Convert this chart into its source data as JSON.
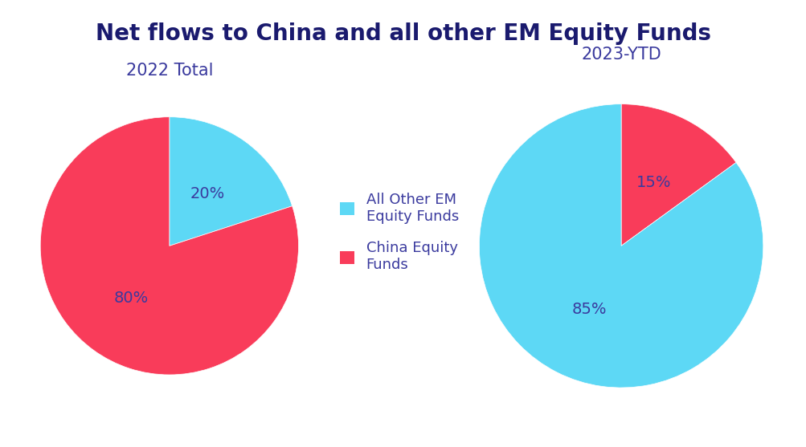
{
  "title": "Net flows to China and all other EM Equity Funds",
  "title_color": "#1a1a6e",
  "title_fontsize": 20,
  "background_color": "#ffffff",
  "pie1_title": "2022 Total",
  "pie2_title": "2023-YTD",
  "subtitle_color": "#3a3a9e",
  "subtitle_fontsize": 15,
  "pie1_values": [
    20,
    80
  ],
  "pie2_values": [
    85,
    15
  ],
  "colors_order1": [
    "#5dd8f5",
    "#f93c5a"
  ],
  "colors_order2": [
    "#5dd8f5",
    "#f93c5a"
  ],
  "legend_labels": [
    "All Other EM\nEquity Funds",
    "China Equity\nFunds"
  ],
  "legend_colors": [
    "#5dd8f5",
    "#f93c5a"
  ],
  "label_color": "#3a3a9e",
  "label_fontsize": 14,
  "pie1_startangle": 90,
  "pie2_startangle": 90
}
